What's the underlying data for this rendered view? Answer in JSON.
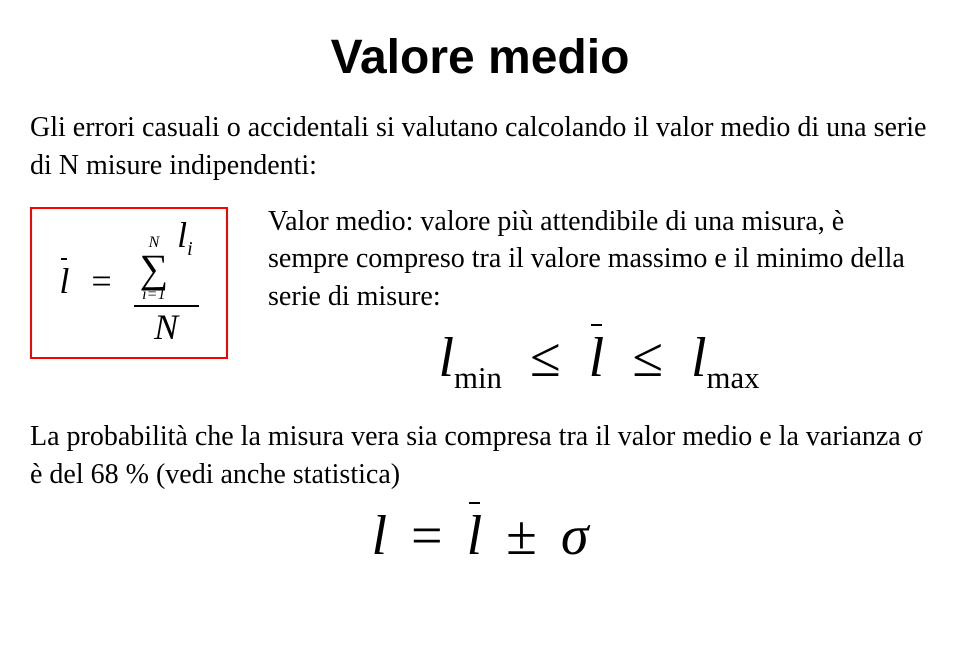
{
  "title": "Valore medio",
  "intro": "Gli errori casuali o accidentali si valutano calcolando il valor medio di una serie di N misure indipendenti:",
  "mean_formula": {
    "lhs": "l",
    "eq": "=",
    "sum_top": "N",
    "sigma": "∑",
    "sum_bot_i": "i",
    "sum_bot_eq": "=",
    "sum_bot_1": "1",
    "term_l": "l",
    "term_sub": "i",
    "den": "N",
    "box_border_hex": "#ff0000"
  },
  "desc": "Valor medio: valore più attendibile di una misura, è sempre compreso tra il valore massimo e il minimo della serie di misure:",
  "ineq": {
    "l": "l",
    "min": "min",
    "leq": "≤",
    "lbar": "l",
    "max": "max"
  },
  "prob": "La probabilità che la misura vera sia compresa tra il valor medio e la varianza σ è del 68 % (vedi anche statistica)",
  "final": {
    "l": "l",
    "eq": "=",
    "lbar": "l",
    "pm": "±",
    "sigma": "σ"
  },
  "fonts": {
    "title_size": 48,
    "body_size": 28,
    "big_math_size": 56
  },
  "colors": {
    "bg": "#ffffff",
    "text": "#000000",
    "box_border": "#ff0000"
  }
}
